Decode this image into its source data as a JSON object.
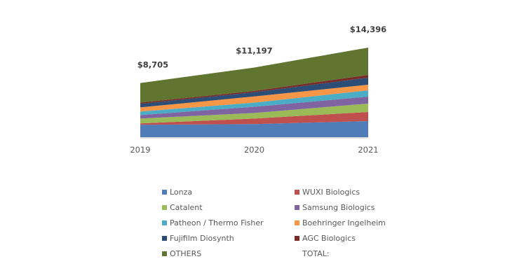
{
  "chart_data": {
    "type": "area",
    "stacked": true,
    "title": "",
    "xlabel": "",
    "ylabel": "",
    "categories": [
      "2019",
      "2020",
      "2021"
    ],
    "ylim": [
      0,
      14396
    ],
    "grid": false,
    "totals": [
      "$8,705",
      "$11,197",
      "$14,396"
    ],
    "total_values": [
      8705,
      11197,
      14396
    ],
    "series": [
      {
        "name": "Lonza",
        "color": "#4f7db8",
        "values": [
          2000,
          2110,
          2590
        ]
      },
      {
        "name": "WUXI Biologics",
        "color": "#c0504d",
        "values": [
          220,
          890,
          1460
        ]
      },
      {
        "name": "Catalent",
        "color": "#9bbb59",
        "values": [
          780,
          890,
          1350
        ]
      },
      {
        "name": "Samsung Biologics",
        "color": "#8064a2",
        "values": [
          560,
          1000,
          1125
        ]
      },
      {
        "name": "Patheon / Thermo Fisher",
        "color": "#4bacc6",
        "values": [
          560,
          665,
          1010
        ]
      },
      {
        "name": "Boehringer Ingelheim",
        "color": "#f79646",
        "values": [
          670,
          1000,
          900
        ]
      },
      {
        "name": "Fujifilm Diosynth",
        "color": "#2c4d75",
        "values": [
          560,
          665,
          1125
        ]
      },
      {
        "name": "AGC Biologics",
        "color": "#772c2a",
        "values": [
          220,
          220,
          450
        ]
      },
      {
        "name": "OTHERS",
        "color": "#5f7530",
        "values": [
          3135,
          3757,
          4386
        ]
      }
    ],
    "legend": {
      "placement": "bottom",
      "total_label": "TOTAL:"
    }
  }
}
